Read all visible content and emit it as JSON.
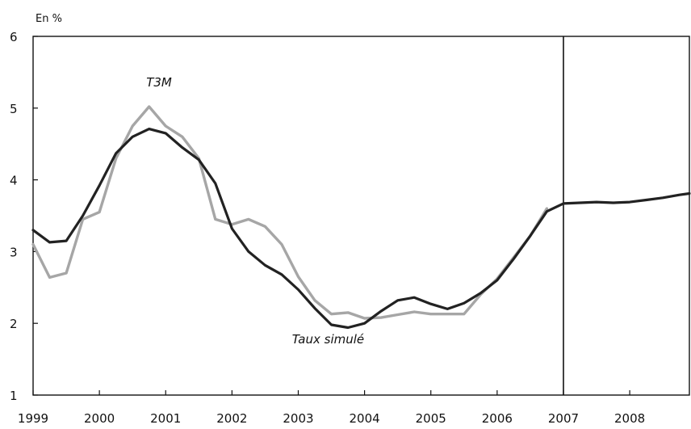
{
  "chart_data": {
    "type": "line",
    "title": "",
    "unit_label": "En %",
    "xlabel": "",
    "ylabel": "",
    "xlim": [
      1999,
      2008.9
    ],
    "ylim": [
      1,
      6
    ],
    "x_ticks": [
      "1999",
      "2000",
      "2001",
      "2002",
      "2003",
      "2004",
      "2005",
      "2006",
      "2007",
      "2008"
    ],
    "y_ticks": [
      "1",
      "2",
      "3",
      "4",
      "5",
      "6"
    ],
    "vertical_marker_x": 2007,
    "grid": false,
    "legend": "none",
    "series": [
      {
        "name": "T3M",
        "color": "#a6a6a6",
        "x": [
          1999.0,
          1999.25,
          1999.5,
          1999.75,
          2000.0,
          2000.25,
          2000.5,
          2000.75,
          2001.0,
          2001.25,
          2001.5,
          2001.75,
          2002.0,
          2002.25,
          2002.5,
          2002.75,
          2003.0,
          2003.25,
          2003.5,
          2003.75,
          2004.0,
          2004.25,
          2004.5,
          2004.75,
          2005.0,
          2005.25,
          2005.5,
          2005.75,
          2006.0,
          2006.25,
          2006.5,
          2006.75
        ],
        "values": [
          3.1,
          2.64,
          2.7,
          3.45,
          3.55,
          4.3,
          4.75,
          5.02,
          4.75,
          4.6,
          4.3,
          3.45,
          3.38,
          3.45,
          3.35,
          3.1,
          2.65,
          2.32,
          2.13,
          2.15,
          2.07,
          2.08,
          2.12,
          2.16,
          2.13,
          2.13,
          2.13,
          2.4,
          2.62,
          2.92,
          3.22,
          3.6
        ]
      },
      {
        "name": "Taux simulé",
        "color": "#222222",
        "x": [
          1999.0,
          1999.25,
          1999.5,
          1999.75,
          2000.0,
          2000.25,
          2000.5,
          2000.75,
          2001.0,
          2001.25,
          2001.5,
          2001.75,
          2002.0,
          2002.25,
          2002.5,
          2002.75,
          2003.0,
          2003.25,
          2003.5,
          2003.75,
          2004.0,
          2004.25,
          2004.5,
          2004.75,
          2005.0,
          2005.25,
          2005.5,
          2005.75,
          2006.0,
          2006.25,
          2006.5,
          2006.75,
          2007.0,
          2007.25,
          2007.5,
          2007.75,
          2008.0,
          2008.25,
          2008.5,
          2008.75,
          2008.9
        ],
        "values": [
          3.3,
          3.13,
          3.15,
          3.5,
          3.92,
          4.37,
          4.6,
          4.71,
          4.65,
          4.45,
          4.28,
          3.95,
          3.32,
          3.0,
          2.81,
          2.68,
          2.47,
          2.21,
          1.98,
          1.94,
          2.0,
          2.17,
          2.32,
          2.36,
          2.27,
          2.2,
          2.28,
          2.42,
          2.6,
          2.9,
          3.22,
          3.56,
          3.67,
          3.68,
          3.69,
          3.68,
          3.69,
          3.72,
          3.75,
          3.79,
          3.81
        ]
      }
    ],
    "annotations": [
      {
        "text": "T3M",
        "x": 2000.9,
        "y": 5.3
      },
      {
        "text": "Taux simulé",
        "x": 2003.45,
        "y": 1.72
      }
    ]
  }
}
